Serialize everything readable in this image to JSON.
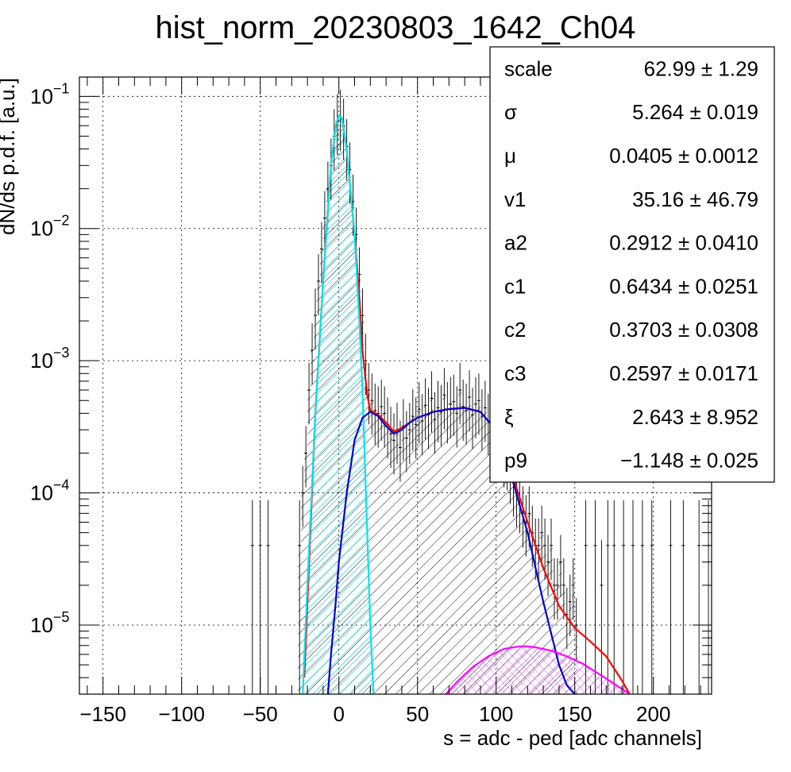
{
  "chart_data": {
    "type": "histogram-fit",
    "title": "hist_norm_20230803_1642_Ch04",
    "xlabel": "s = adc - ped [adc channels]",
    "ylabel": "dN/ds p.d.f. [a.u.]",
    "xlim": [
      -165,
      237
    ],
    "ylim": [
      3e-06,
      0.14
    ],
    "yscale": "log",
    "grid": true,
    "x_ticks": [
      -150,
      -100,
      -50,
      0,
      50,
      100,
      150,
      200
    ],
    "x_tick_labels": [
      "−150",
      "−100",
      "−50",
      "0",
      "50",
      "100",
      "150",
      "200"
    ],
    "y_ticks": [
      {
        "value": 1e-05,
        "base": "10",
        "exp": "−5"
      },
      {
        "value": 0.0001,
        "base": "10",
        "exp": "−4"
      },
      {
        "value": 0.001,
        "base": "10",
        "exp": "−3"
      },
      {
        "value": 0.01,
        "base": "10",
        "exp": "−2"
      },
      {
        "value": 0.1,
        "base": "10",
        "exp": "−1"
      }
    ],
    "stats_box": {
      "placement": "top-right",
      "rows": [
        {
          "name": "scale",
          "value": "62.99",
          "error": "1.29"
        },
        {
          "name": "σ",
          "value": "5.264",
          "error": "0.019"
        },
        {
          "name": "μ",
          "value": "0.0405",
          "error": "0.0012"
        },
        {
          "name": "v1",
          "value": "35.16",
          "error": "46.79"
        },
        {
          "name": "a2",
          "value": "0.2912",
          "error": "0.0410"
        },
        {
          "name": "c1",
          "value": "0.6434",
          "error": "0.0251"
        },
        {
          "name": "c2",
          "value": "0.3703",
          "error": "0.0308"
        },
        {
          "name": "c3",
          "value": "0.2597",
          "error": "0.0171"
        },
        {
          "name": "ξ",
          "value": "2.643",
          "error": "8.952"
        },
        {
          "name": "p9",
          "value": "−1.148",
          "error": "0.025"
        }
      ]
    },
    "series": [
      {
        "kind": "total_fit",
        "color": "#ff0000",
        "x": [
          -22,
          -15,
          -10,
          -5,
          -2,
          0,
          2,
          5,
          10,
          13,
          15,
          18,
          20,
          25,
          30,
          35,
          40,
          45,
          50,
          60,
          70,
          80,
          90,
          100,
          110,
          120,
          130,
          140,
          150,
          160,
          170,
          180,
          185
        ],
        "y": [
          4e-06,
          0.0004,
          0.004,
          0.03,
          0.06,
          0.072,
          0.068,
          0.04,
          0.009,
          0.003,
          0.0012,
          0.00055,
          0.00042,
          0.00039,
          0.00034,
          0.00029,
          0.00031,
          0.00034,
          0.00037,
          0.00041,
          0.00043,
          0.00044,
          0.00041,
          0.0003,
          0.00014,
          6e-05,
          2.7e-05,
          1.4e-05,
          9.5e-06,
          7.5e-06,
          5.8e-06,
          3.8e-06,
          3e-06
        ]
      },
      {
        "kind": "pedestal_component",
        "color": "#00e5ee",
        "fill": true,
        "x": [
          -23,
          -20,
          -15,
          -10,
          -5,
          -2,
          0,
          2,
          5,
          10,
          13,
          15,
          18,
          20,
          22
        ],
        "y": [
          3e-06,
          2e-05,
          0.0004,
          0.004,
          0.03,
          0.06,
          0.072,
          0.068,
          0.04,
          0.009,
          0.002,
          0.0006,
          5e-05,
          1e-05,
          3e-06
        ]
      },
      {
        "kind": "signal_component",
        "color": "#0000cc",
        "fill": true,
        "x": [
          -7,
          -5,
          -2,
          0,
          5,
          10,
          15,
          20,
          25,
          30,
          35,
          40,
          45,
          50,
          60,
          70,
          80,
          90,
          100,
          110,
          120,
          130,
          140,
          145,
          150
        ],
        "y": [
          3e-06,
          6e-06,
          1.5e-05,
          3e-05,
          0.0001,
          0.00025,
          0.00037,
          0.00041,
          0.00038,
          0.00032,
          0.00028,
          0.0003,
          0.00034,
          0.00037,
          0.00041,
          0.00043,
          0.00044,
          0.00041,
          0.0003,
          0.00013,
          5e-05,
          1.5e-05,
          5e-06,
          3.5e-06,
          3e-06
        ]
      },
      {
        "kind": "second_component",
        "color": "#ff00ff",
        "fill": true,
        "x": [
          68,
          75,
          85,
          95,
          105,
          115,
          120,
          125,
          135,
          145,
          155,
          165,
          175,
          185
        ],
        "y": [
          3e-06,
          3.7e-06,
          4.8e-06,
          5.8e-06,
          6.6e-06,
          6.9e-06,
          6.9e-06,
          6.8e-06,
          6.4e-06,
          5.8e-06,
          5.1e-06,
          4.3e-06,
          3.6e-06,
          3e-06
        ]
      }
    ],
    "data_points_note": "",
    "data_points": [
      [
        -55,
        4e-05
      ],
      [
        -50,
        4e-05
      ],
      [
        -45,
        4e-05
      ],
      [
        -25,
        4e-05
      ],
      [
        -23,
        0.0001
      ],
      [
        -21,
        0.0002
      ],
      [
        -19,
        0.0006
      ],
      [
        -17,
        0.0012
      ],
      [
        -15,
        0.0022
      ],
      [
        -13,
        0.004
      ],
      [
        -11,
        0.007
      ],
      [
        -9,
        0.012
      ],
      [
        -7,
        0.02
      ],
      [
        -5,
        0.03
      ],
      [
        -3,
        0.05
      ],
      [
        -1,
        0.065
      ],
      [
        1,
        0.07
      ],
      [
        3,
        0.06
      ],
      [
        5,
        0.042
      ],
      [
        7,
        0.028
      ],
      [
        9,
        0.016
      ],
      [
        11,
        0.009
      ],
      [
        13,
        0.0045
      ],
      [
        15,
        0.0022
      ],
      [
        17,
        0.001
      ],
      [
        19,
        0.0006
      ],
      [
        21,
        0.0005
      ],
      [
        23,
        0.00042
      ],
      [
        25,
        0.0004
      ],
      [
        27,
        0.00045
      ],
      [
        29,
        0.0004
      ],
      [
        31,
        0.00033
      ],
      [
        33,
        0.00028
      ],
      [
        35,
        0.00025
      ],
      [
        37,
        0.0003
      ],
      [
        39,
        0.00022
      ],
      [
        41,
        0.00032
      ],
      [
        43,
        0.00026
      ],
      [
        45,
        0.0003
      ],
      [
        47,
        0.00038
      ],
      [
        49,
        0.00033
      ],
      [
        51,
        0.00043
      ],
      [
        53,
        0.00035
      ],
      [
        55,
        0.00046
      ],
      [
        57,
        0.00039
      ],
      [
        59,
        0.00052
      ],
      [
        61,
        0.00036
      ],
      [
        63,
        0.00044
      ],
      [
        65,
        0.00041
      ],
      [
        67,
        0.00055
      ],
      [
        69,
        0.00043
      ],
      [
        71,
        0.00047
      ],
      [
        73,
        0.00049
      ],
      [
        75,
        0.0004
      ],
      [
        77,
        0.0006
      ],
      [
        79,
        0.00045
      ],
      [
        81,
        0.00042
      ],
      [
        83,
        0.00053
      ],
      [
        85,
        0.00039
      ],
      [
        87,
        0.00047
      ],
      [
        89,
        0.0005
      ],
      [
        91,
        0.00038
      ],
      [
        93,
        0.00044
      ],
      [
        95,
        0.00035
      ],
      [
        97,
        0.00033
      ],
      [
        99,
        0.0003
      ],
      [
        101,
        0.00028
      ],
      [
        103,
        0.00024
      ],
      [
        105,
        0.0002
      ],
      [
        107,
        0.00019
      ],
      [
        109,
        0.00015
      ],
      [
        111,
        0.00012
      ],
      [
        113,
        0.0001
      ],
      [
        115,
        9e-05
      ],
      [
        117,
        7e-05
      ],
      [
        119,
        6e-05
      ],
      [
        121,
        7e-05
      ],
      [
        123,
        5e-05
      ],
      [
        125,
        4e-05
      ],
      [
        127,
        4e-05
      ],
      [
        129,
        5e-05
      ],
      [
        131,
        4e-05
      ],
      [
        133,
        3e-05
      ],
      [
        135,
        4e-05
      ],
      [
        137,
        2e-05
      ],
      [
        139,
        2e-05
      ],
      [
        141,
        3e-05
      ],
      [
        143,
        2e-05
      ],
      [
        145,
        1.2e-05
      ],
      [
        147,
        1.5e-05
      ],
      [
        149,
        2e-05
      ],
      [
        151,
        1e-05
      ],
      [
        157,
        4e-05
      ],
      [
        163,
        4e-05
      ],
      [
        167,
        2e-05
      ],
      [
        171,
        4e-05
      ],
      [
        175,
        4e-05
      ],
      [
        181,
        4e-05
      ],
      [
        187,
        4e-05
      ],
      [
        193,
        4e-05
      ],
      [
        199,
        4e-05
      ],
      [
        211,
        4e-05
      ],
      [
        219,
        4e-05
      ],
      [
        229,
        4e-05
      ],
      [
        235,
        4e-05
      ]
    ]
  }
}
